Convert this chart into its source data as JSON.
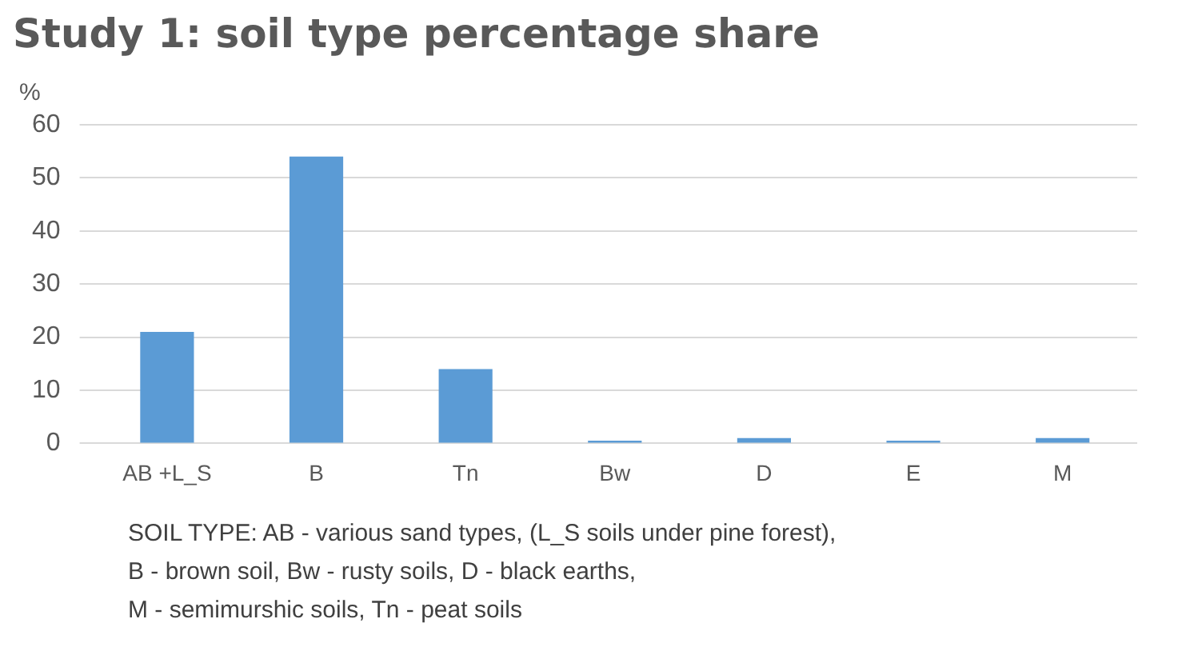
{
  "chart_data": {
    "type": "bar",
    "title": "Study 1: soil type percentage share",
    "ylabel": "%",
    "categories": [
      "AB +L_S",
      "B",
      "Tn",
      "Bw",
      "D",
      "E",
      "M"
    ],
    "values": [
      21,
      54,
      14,
      0.5,
      1,
      0.5,
      1
    ],
    "color": "#5b9bd5",
    "ylim": [
      0,
      60
    ],
    "yticks": [
      0,
      10,
      20,
      30,
      40,
      50,
      60
    ],
    "grid": "y",
    "legend": false,
    "annotations": [
      "SOIL TYPE: AB - various sand types, (L_S soils under pine forest),",
      "B - brown soil, Bw - rusty soils, D - black earths,",
      "M - semimurshic soils, Tn - peat soils"
    ]
  }
}
